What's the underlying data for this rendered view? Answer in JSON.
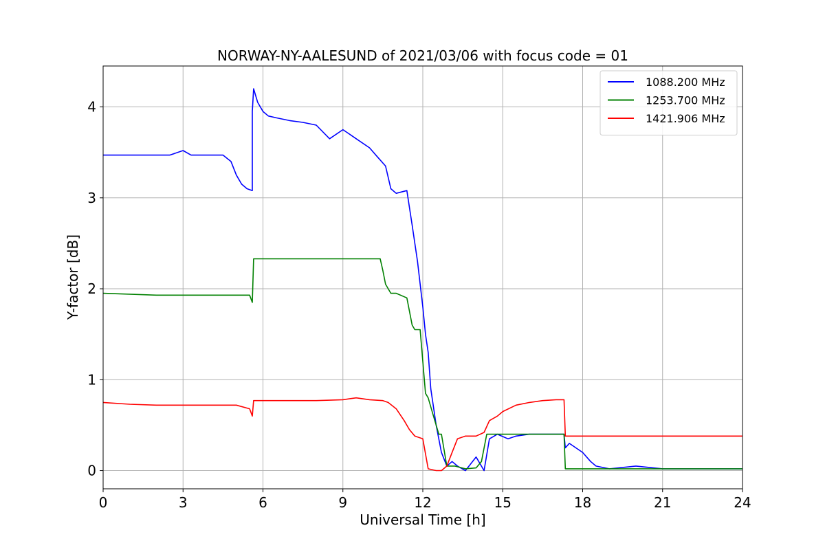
{
  "chart_data": {
    "type": "line",
    "title": "NORWAY-NY-AALESUND of 2021/03/06 with focus code = 01",
    "xlabel": "Universal Time [h]",
    "ylabel": "Y-factor [dB]",
    "xlim": [
      0,
      24
    ],
    "ylim": [
      -0.2,
      4.45
    ],
    "xticks": [
      0,
      3,
      6,
      9,
      12,
      15,
      18,
      21,
      24
    ],
    "yticks": [
      0,
      1,
      2,
      3,
      4
    ],
    "grid": true,
    "legend_position": "top-right",
    "series": [
      {
        "name": "1088.200 MHz",
        "color": "#0000ff",
        "x": [
          0,
          2.5,
          3.0,
          3.3,
          4.5,
          4.8,
          5.0,
          5.2,
          5.4,
          5.6,
          5.6,
          5.65,
          5.8,
          6.0,
          6.2,
          6.5,
          7.0,
          7.5,
          8.0,
          8.5,
          9.0,
          9.5,
          10.0,
          10.3,
          10.6,
          10.8,
          11.0,
          11.4,
          11.6,
          11.8,
          12.0,
          12.1,
          12.2,
          12.3,
          12.5,
          12.7,
          12.9,
          13.1,
          13.3,
          13.6,
          14.0,
          14.3,
          14.5,
          14.8,
          15.2,
          15.5,
          16.0,
          16.5,
          17.0,
          17.3,
          17.35,
          17.5,
          18.0,
          18.3,
          18.5,
          19.0,
          20.0,
          21.0,
          22.0,
          23.0,
          24.0
        ],
        "y": [
          3.47,
          3.47,
          3.52,
          3.47,
          3.47,
          3.4,
          3.25,
          3.15,
          3.1,
          3.08,
          3.95,
          4.2,
          4.05,
          3.95,
          3.9,
          3.88,
          3.85,
          3.83,
          3.8,
          3.65,
          3.75,
          3.65,
          3.55,
          3.45,
          3.35,
          3.1,
          3.05,
          3.08,
          2.7,
          2.3,
          1.8,
          1.5,
          1.3,
          0.9,
          0.5,
          0.2,
          0.05,
          0.1,
          0.05,
          0.0,
          0.15,
          0.0,
          0.35,
          0.4,
          0.35,
          0.38,
          0.4,
          0.4,
          0.4,
          0.4,
          0.25,
          0.3,
          0.2,
          0.1,
          0.05,
          0.02,
          0.05,
          0.02,
          0.02,
          0.02,
          0.02
        ]
      },
      {
        "name": "1253.700 MHz",
        "color": "#008000",
        "x": [
          0,
          2.0,
          4.0,
          5.5,
          5.6,
          5.65,
          6.0,
          7.0,
          8.0,
          9.0,
          9.5,
          10.0,
          10.4,
          10.5,
          10.6,
          10.8,
          11.0,
          11.4,
          11.6,
          11.7,
          11.9,
          12.0,
          12.1,
          12.2,
          12.4,
          12.6,
          12.7,
          12.9,
          13.2,
          13.6,
          14.0,
          14.2,
          14.4,
          15.0,
          16.0,
          17.0,
          17.3,
          17.35,
          18.0,
          20.0,
          22.0,
          24.0
        ],
        "y": [
          1.95,
          1.93,
          1.93,
          1.93,
          1.85,
          2.33,
          2.33,
          2.33,
          2.33,
          2.33,
          2.33,
          2.33,
          2.33,
          2.2,
          2.05,
          1.95,
          1.95,
          1.9,
          1.6,
          1.55,
          1.55,
          1.2,
          0.85,
          0.8,
          0.6,
          0.4,
          0.4,
          0.05,
          0.05,
          0.02,
          0.03,
          0.1,
          0.4,
          0.4,
          0.4,
          0.4,
          0.4,
          0.02,
          0.02,
          0.02,
          0.02,
          0.02
        ]
      },
      {
        "name": "1421.906 MHz",
        "color": "#ff0000",
        "x": [
          0,
          1.0,
          2.0,
          3.0,
          4.0,
          5.0,
          5.5,
          5.6,
          5.65,
          6.0,
          8.0,
          9.0,
          9.5,
          10.0,
          10.5,
          10.7,
          11.0,
          11.3,
          11.5,
          11.7,
          12.0,
          12.2,
          12.5,
          12.7,
          12.9,
          13.1,
          13.3,
          13.6,
          14.0,
          14.3,
          14.5,
          14.8,
          15.0,
          15.5,
          16.0,
          16.5,
          17.0,
          17.3,
          17.35,
          18.0,
          20.0,
          22.0,
          24.0
        ],
        "y": [
          0.75,
          0.73,
          0.72,
          0.72,
          0.72,
          0.72,
          0.68,
          0.6,
          0.77,
          0.77,
          0.77,
          0.78,
          0.8,
          0.78,
          0.77,
          0.75,
          0.68,
          0.55,
          0.45,
          0.38,
          0.35,
          0.02,
          0.0,
          0.0,
          0.05,
          0.2,
          0.35,
          0.38,
          0.38,
          0.42,
          0.55,
          0.6,
          0.65,
          0.72,
          0.75,
          0.77,
          0.78,
          0.78,
          0.38,
          0.38,
          0.38,
          0.38,
          0.38
        ]
      }
    ]
  }
}
